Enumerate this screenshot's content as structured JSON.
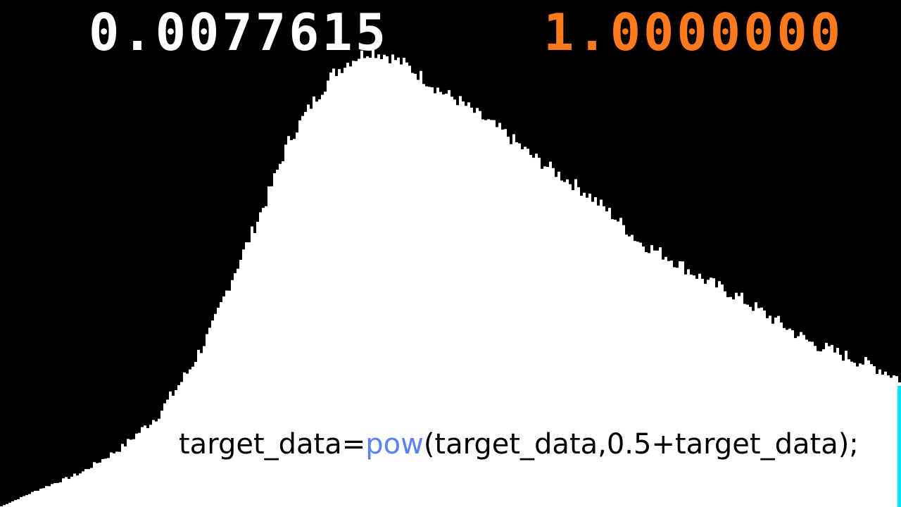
{
  "readouts": {
    "left_value": "0.0077615",
    "right_value": "1.0000000"
  },
  "code": {
    "prefix": "target_data=",
    "function": "pow",
    "suffix": "(target_data,0.5+target_data);"
  },
  "colors": {
    "background": "#000000",
    "histogram_fill": "#ffffff",
    "left_readout": "#ffffff",
    "right_readout": "#ff7a1e",
    "code_text": "#000000",
    "code_function": "#5b82f0",
    "edge_marker": "#00e5ff"
  },
  "chart_data": {
    "type": "bar",
    "title": "",
    "xlabel": "",
    "ylabel": "",
    "grid": false,
    "legend": "none",
    "ylim": [
      0,
      1
    ],
    "x": [
      0.0,
      0.045,
      0.09,
      0.135,
      0.175,
      0.21,
      0.235,
      0.255,
      0.275,
      0.295,
      0.32,
      0.345,
      0.37,
      0.39,
      0.41,
      0.43,
      0.45,
      0.47,
      0.49,
      0.51,
      0.53,
      0.56,
      0.59,
      0.62,
      0.65,
      0.68,
      0.71,
      0.74,
      0.78,
      0.82,
      0.86,
      0.9,
      0.94,
      0.98,
      1.0
    ],
    "values": [
      0.0,
      0.04,
      0.075,
      0.13,
      0.2,
      0.3,
      0.39,
      0.49,
      0.58,
      0.67,
      0.8,
      0.88,
      0.95,
      0.98,
      1.0,
      0.99,
      0.97,
      0.94,
      0.91,
      0.89,
      0.86,
      0.82,
      0.77,
      0.73,
      0.69,
      0.64,
      0.58,
      0.55,
      0.5,
      0.46,
      0.41,
      0.36,
      0.33,
      0.3,
      0.28
    ]
  }
}
